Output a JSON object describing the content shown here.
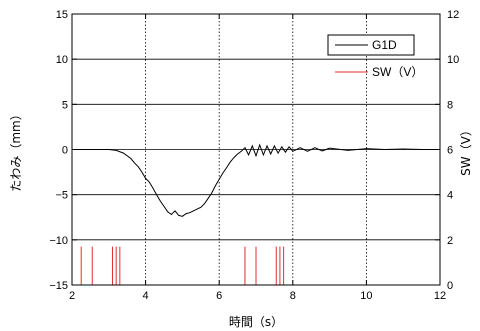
{
  "chart_data": {
    "type": "line",
    "xlabel": "時間（s）",
    "ylabel": "たわみ（mm）",
    "y2label": "SW（V）",
    "xlim": [
      2,
      12
    ],
    "ylim": [
      -15,
      15
    ],
    "y2lim": [
      0,
      12
    ],
    "x_ticks": [
      "2",
      "4",
      "6",
      "8",
      "10",
      "12"
    ],
    "y_ticks": [
      "15",
      "10",
      "5",
      "0",
      "−5",
      "−10",
      "−15"
    ],
    "y2_ticks": [
      "12",
      "10",
      "8",
      "6",
      "4",
      "2",
      "0"
    ],
    "grid": "vertical dotted lines at x = 4, 6, 8, 10; horizontal solid lines at each y tick",
    "legend_position": "top-right",
    "series": [
      {
        "name": "G1D",
        "color": "#000000",
        "axis": "left",
        "x": [
          2.0,
          3.0,
          3.2,
          3.4,
          3.6,
          3.7,
          3.8,
          3.9,
          4.0,
          4.1,
          4.2,
          4.3,
          4.4,
          4.5,
          4.6,
          4.7,
          4.8,
          4.9,
          5.0,
          5.1,
          5.2,
          5.3,
          5.4,
          5.5,
          5.6,
          5.7,
          5.8,
          5.9,
          6.0,
          6.1,
          6.2,
          6.3,
          6.4,
          6.5,
          6.6,
          6.7,
          6.8,
          6.9,
          7.0,
          7.1,
          7.2,
          7.3,
          7.4,
          7.5,
          7.6,
          7.7,
          7.8,
          7.9,
          8.0,
          8.2,
          8.4,
          8.6,
          8.8,
          9.0,
          9.5,
          10.0,
          10.5,
          11.0,
          11.5,
          12.0
        ],
        "y": [
          0.0,
          0.0,
          -0.1,
          -0.4,
          -1.0,
          -1.5,
          -1.9,
          -2.5,
          -3.2,
          -3.6,
          -4.3,
          -5.0,
          -5.7,
          -6.3,
          -6.9,
          -7.2,
          -6.8,
          -7.3,
          -7.4,
          -7.1,
          -7.0,
          -6.8,
          -6.6,
          -6.4,
          -6.0,
          -5.4,
          -4.8,
          -4.0,
          -3.3,
          -2.6,
          -2.0,
          -1.4,
          -0.9,
          -0.5,
          -0.2,
          0.2,
          -0.6,
          0.4,
          -0.7,
          0.5,
          -0.6,
          0.4,
          -0.5,
          0.4,
          -0.4,
          0.3,
          -0.3,
          0.3,
          -0.2,
          0.2,
          -0.2,
          0.2,
          -0.15,
          0.15,
          -0.1,
          0.1,
          0.0,
          0.05,
          0.0,
          0.0
        ]
      },
      {
        "name": "SW（V）",
        "color": "#e03030",
        "axis": "right",
        "pulse_baseline": 0,
        "pulse_height": 1.7,
        "pulses_x": [
          2.25,
          2.55,
          3.1,
          3.2,
          3.3,
          6.7,
          7.0,
          7.55,
          7.65,
          7.75
        ]
      }
    ]
  }
}
